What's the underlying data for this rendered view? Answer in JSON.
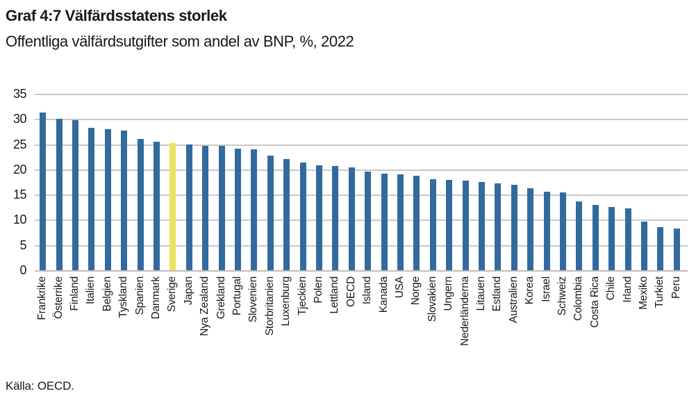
{
  "header": {
    "title": "Graf 4:7 Välfärdsstatens storlek",
    "subtitle": "Offentliga välfärdsutgifter som andel av BNP, %, 2022"
  },
  "footer": {
    "source": "Källa: OECD."
  },
  "chart_data": {
    "type": "bar",
    "title": "Graf 4:7 Välfärdsstatens storlek",
    "subtitle": "Offentliga välfärdsutgifter som andel av BNP, %, 2022",
    "xlabel": "",
    "ylabel": "",
    "ylim": [
      0,
      35
    ],
    "yticks": [
      0,
      5,
      10,
      15,
      20,
      25,
      30,
      35
    ],
    "grid": true,
    "legend": false,
    "bar_color": "#336A9E",
    "highlight": {
      "category": "Sverige",
      "index": 8,
      "color": "#EAE35C"
    },
    "gridline_color": "#c9c9c9",
    "categories": [
      "Frankrike",
      "Österrike",
      "Finland",
      "Italien",
      "Belgien",
      "Tyskland",
      "Spanien",
      "Danmark",
      "Sverige",
      "Japan",
      "Nya Zealand",
      "Grekland",
      "Portugal",
      "Slovenien",
      "Storbritanien",
      "Luxenburg",
      "Tjeckien",
      "Polen",
      "Lettland",
      "OECD",
      "Island",
      "Kanada",
      "USA",
      "Norge",
      "Slovakien",
      "Ungern",
      "Nederländerna",
      "Litauen",
      "Estland",
      "Australien",
      "Korea",
      "Israel",
      "Schweiz",
      "Colombia",
      "Costa Rica",
      "Chile",
      "Irland",
      "Mexiko",
      "Turkiet",
      "Peru"
    ],
    "values": [
      31.3,
      30.0,
      29.7,
      28.3,
      28.0,
      27.7,
      26.0,
      25.5,
      25.2,
      24.9,
      24.7,
      24.6,
      24.1,
      24.0,
      22.7,
      22.1,
      21.3,
      20.8,
      20.7,
      20.4,
      19.5,
      19.2,
      19.0,
      18.8,
      18.1,
      17.9,
      17.8,
      17.5,
      17.2,
      16.9,
      16.2,
      15.6,
      15.5,
      13.6,
      12.9,
      12.5,
      12.2,
      9.6,
      8.5,
      8.2
    ],
    "source": "Källa: OECD."
  }
}
